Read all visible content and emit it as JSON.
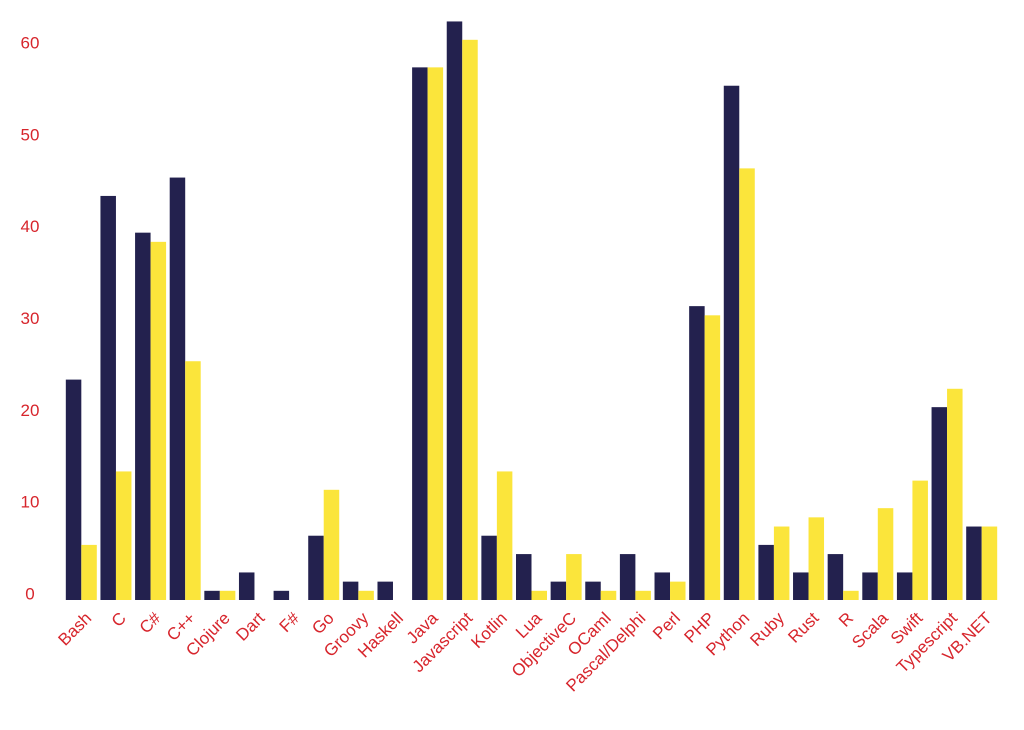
{
  "chart_data": {
    "type": "bar",
    "categories": [
      "Bash",
      "C",
      "C#",
      "C++",
      "Clojure",
      "Dart",
      "F#",
      "Go",
      "Groovy",
      "Haskell",
      "Java",
      "Javascript",
      "Kotlin",
      "Lua",
      "ObjectiveC",
      "OCaml",
      "Pascal/Delphi",
      "Perl",
      "PHP",
      "Python",
      "Ruby",
      "Rust",
      "R",
      "Scala",
      "Swift",
      "Typescript",
      "VB.NET"
    ],
    "series": [
      {
        "color": "#23214e",
        "values": [
          24,
          44,
          40,
          46,
          1,
          3,
          1,
          7,
          2,
          2,
          58,
          63,
          7,
          5,
          2,
          2,
          5,
          3,
          32,
          56,
          6,
          3,
          5,
          3,
          3,
          21,
          8
        ]
      },
      {
        "color": "#fbe53b",
        "values": [
          6,
          14,
          39,
          26,
          1,
          0,
          0,
          12,
          1,
          0,
          58,
          61,
          14,
          1,
          5,
          1,
          1,
          2,
          31,
          47,
          8,
          9,
          1,
          10,
          13,
          23,
          8
        ]
      }
    ],
    "ylim": [
      0,
      64
    ],
    "yticks": [
      0,
      10,
      20,
      30,
      40,
      50,
      60
    ]
  }
}
